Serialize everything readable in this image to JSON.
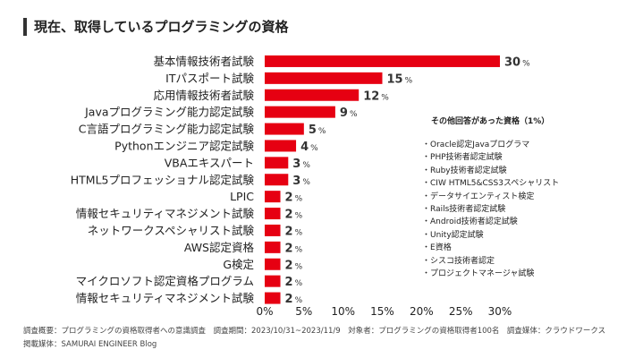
{
  "title": "現在、取得しているプログラミングの資格",
  "chart_data": {
    "type": "bar",
    "orientation": "horizontal",
    "categories": [
      "基本情報技術者試験",
      "ITパスポート試験",
      "応用情報技術者試験",
      "Javaプログラミング能力認定試験",
      "C言語プログラミング能力認定試験",
      "Pythonエンジニア認定試験",
      "VBAエキスパート",
      "HTML5プロフェッショナル認定試験",
      "LPIC",
      "情報セキュリティマネジメント試験",
      "ネットワークスペシャリスト試験",
      "AWS認定資格",
      "G検定",
      "マイクロソフト認定資格プログラム",
      "情報セキュリティマネジメント試験"
    ],
    "values": [
      30,
      15,
      12,
      9,
      5,
      4,
      3,
      3,
      2,
      2,
      2,
      2,
      2,
      2,
      2
    ],
    "value_suffix": "%",
    "xlim": [
      0,
      30
    ],
    "ticks": [
      "0%",
      "5%",
      "10%",
      "15%",
      "20%",
      "25%",
      "30%"
    ],
    "bar_color": "#e60012"
  },
  "others": {
    "title": "その他回答があった資格（1%）",
    "items": [
      "Oracle認定Javaプログラマ",
      "PHP技術者認定試験",
      "Ruby技術者認定試験",
      "CIW HTML5&CSS3スペシャリスト",
      "データサイエンティスト検定",
      "Rails技術者認定試験",
      "Android技術者認定試験",
      "Unity認定試験",
      "E資格",
      "シスコ技術者認定",
      "プロジェクトマネージャ試験"
    ]
  },
  "footnote": "調査概要：プログラミングの資格取得者への意識調査　調査期間：2023/10/31~2023/11/9　対象者：プログラミングの資格取得者100名　調査媒体：クラウドワークス　掲載媒体：SAMURAI ENGINEER Blog"
}
